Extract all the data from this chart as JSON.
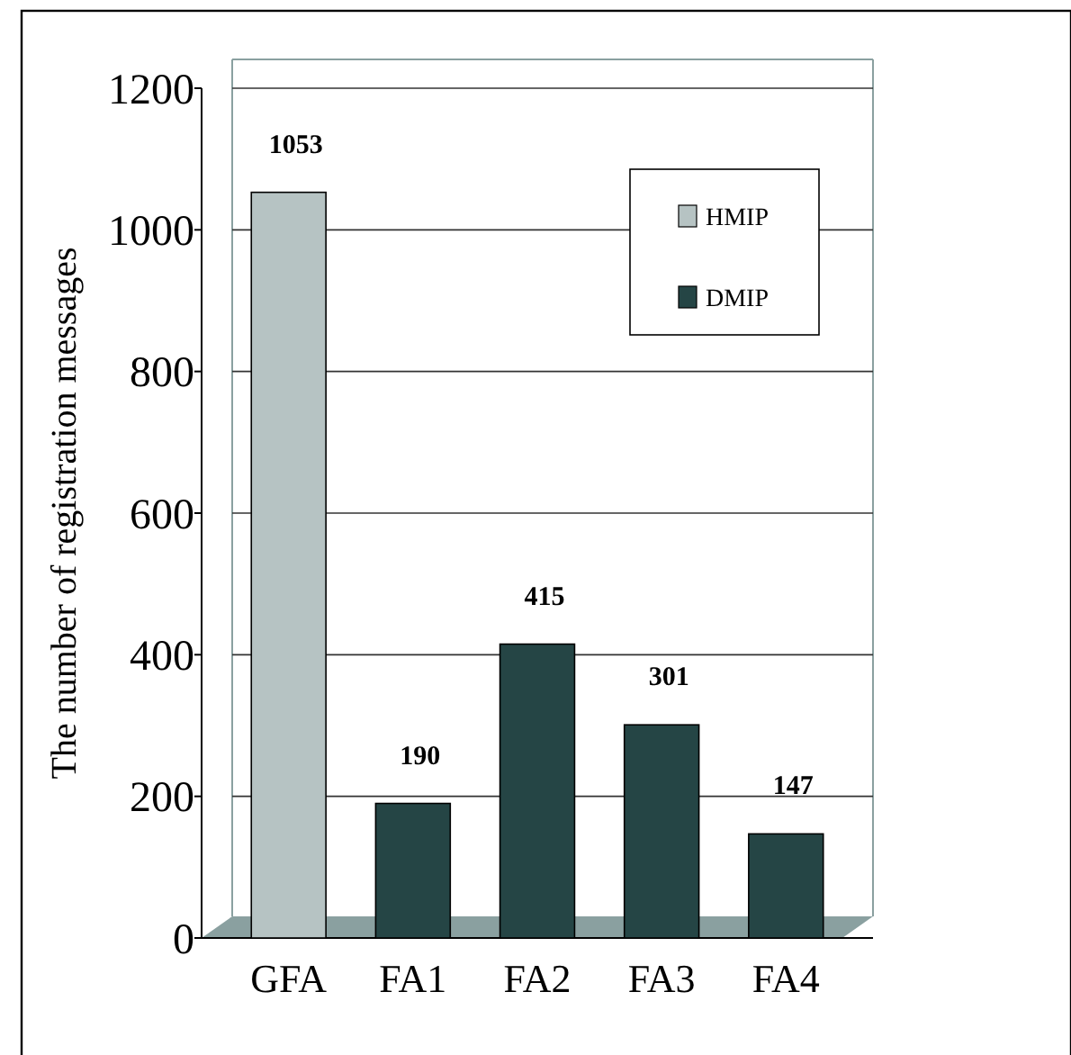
{
  "chart_data": {
    "type": "bar",
    "ylabel": "The number of registration messages",
    "categories": [
      "GFA",
      "FA1",
      "FA2",
      "FA3",
      "FA4"
    ],
    "series": [
      {
        "name": "HMIP",
        "color": "#b6c3c3",
        "values": [
          1053,
          null,
          null,
          null,
          null
        ]
      },
      {
        "name": "DMIP",
        "color": "#254545",
        "values": [
          null,
          190,
          415,
          301,
          147
        ]
      }
    ],
    "ylim": [
      0,
      1200
    ],
    "yticks": [
      0,
      200,
      400,
      600,
      800,
      1000,
      1200
    ],
    "grid": "y",
    "legend": "top right",
    "data_labels": true
  }
}
